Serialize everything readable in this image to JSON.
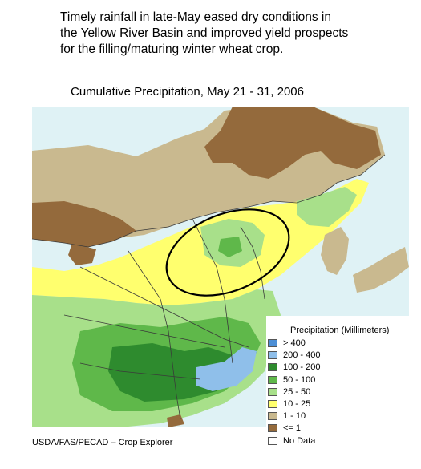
{
  "headline": {
    "lines": [
      "Timely rainfall in late-May eased dry conditions in",
      "the Yellow River Basin and improved yield prospects",
      "for the filling/maturing winter wheat crop."
    ]
  },
  "map": {
    "title": "Cumulative Precipitation, May 21 - 31, 2006",
    "highlight": "ellipse-yellow-river-basin"
  },
  "legend": {
    "title": "Precipitation (Millimeters)",
    "items": [
      {
        "label": "> 400",
        "color": "#4d8fd6"
      },
      {
        "label": "200 - 400",
        "color": "#8fbfea"
      },
      {
        "label": "100 - 200",
        "color": "#2e8b2e"
      },
      {
        "label": "50 - 100",
        "color": "#5fb84a"
      },
      {
        "label": "25 - 50",
        "color": "#a8e08a"
      },
      {
        "label": "10 - 25",
        "color": "#ffff6e"
      },
      {
        "label": "1 - 10",
        "color": "#c9b98f"
      },
      {
        "label": "<= 1",
        "color": "#946a3c"
      },
      {
        "label": "No Data",
        "color": "#ffffff"
      }
    ]
  },
  "credit": "USDA/FAS/PECAD – Crop Explorer",
  "colors": {
    "ocean": "#dff2f5",
    "boundary": "#3a3a3a"
  }
}
